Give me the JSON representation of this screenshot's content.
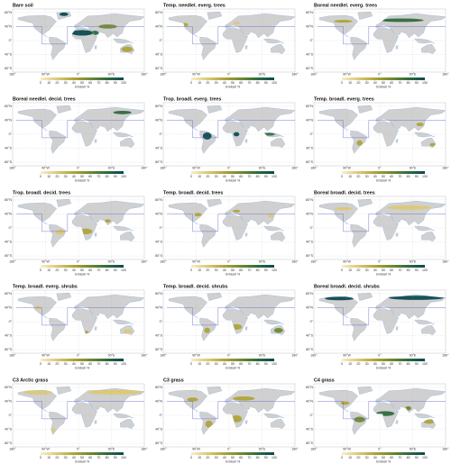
{
  "panels": [
    {
      "title": "Bare soil"
    },
    {
      "title": "Temp. needlel. everg. trees"
    },
    {
      "title": "Boreal needlel. everg. trees"
    },
    {
      "title": "Boreal needlel. decid. trees"
    },
    {
      "title": "Trop. broadl. everg. trees"
    },
    {
      "title": "Temp. broadl. everg. trees"
    },
    {
      "title": "Trop. broadl. decid. trees"
    },
    {
      "title": "Temp. broadl. decid. trees"
    },
    {
      "title": "Boreal broadl. decid. trees"
    },
    {
      "title": "Temp. broadl. everg. shrubs"
    },
    {
      "title": "Temp. broadl. decid. shrubs"
    },
    {
      "title": "Boreal broadl. decid. shrubs"
    },
    {
      "title": "C3 Arctic grass"
    },
    {
      "title": "C3 grass"
    },
    {
      "title": "C4 grass"
    }
  ],
  "map": {
    "lat_labels": [
      "80°N",
      "40°N",
      "0°",
      "40°S",
      "80°S"
    ],
    "lon_labels": [
      "180°",
      "90°W",
      "0°",
      "90°E",
      "180°"
    ]
  },
  "colorbar": {
    "label": "Gridcell %",
    "lim": [
      0,
      100
    ],
    "ticks": [
      0,
      10,
      20,
      30,
      40,
      50,
      60,
      70,
      80,
      90,
      100
    ],
    "colors": [
      "#f7efc6",
      "#dcc874",
      "#aea43a",
      "#6f8a2e",
      "#2f6b3c",
      "#0c4a50"
    ]
  }
}
